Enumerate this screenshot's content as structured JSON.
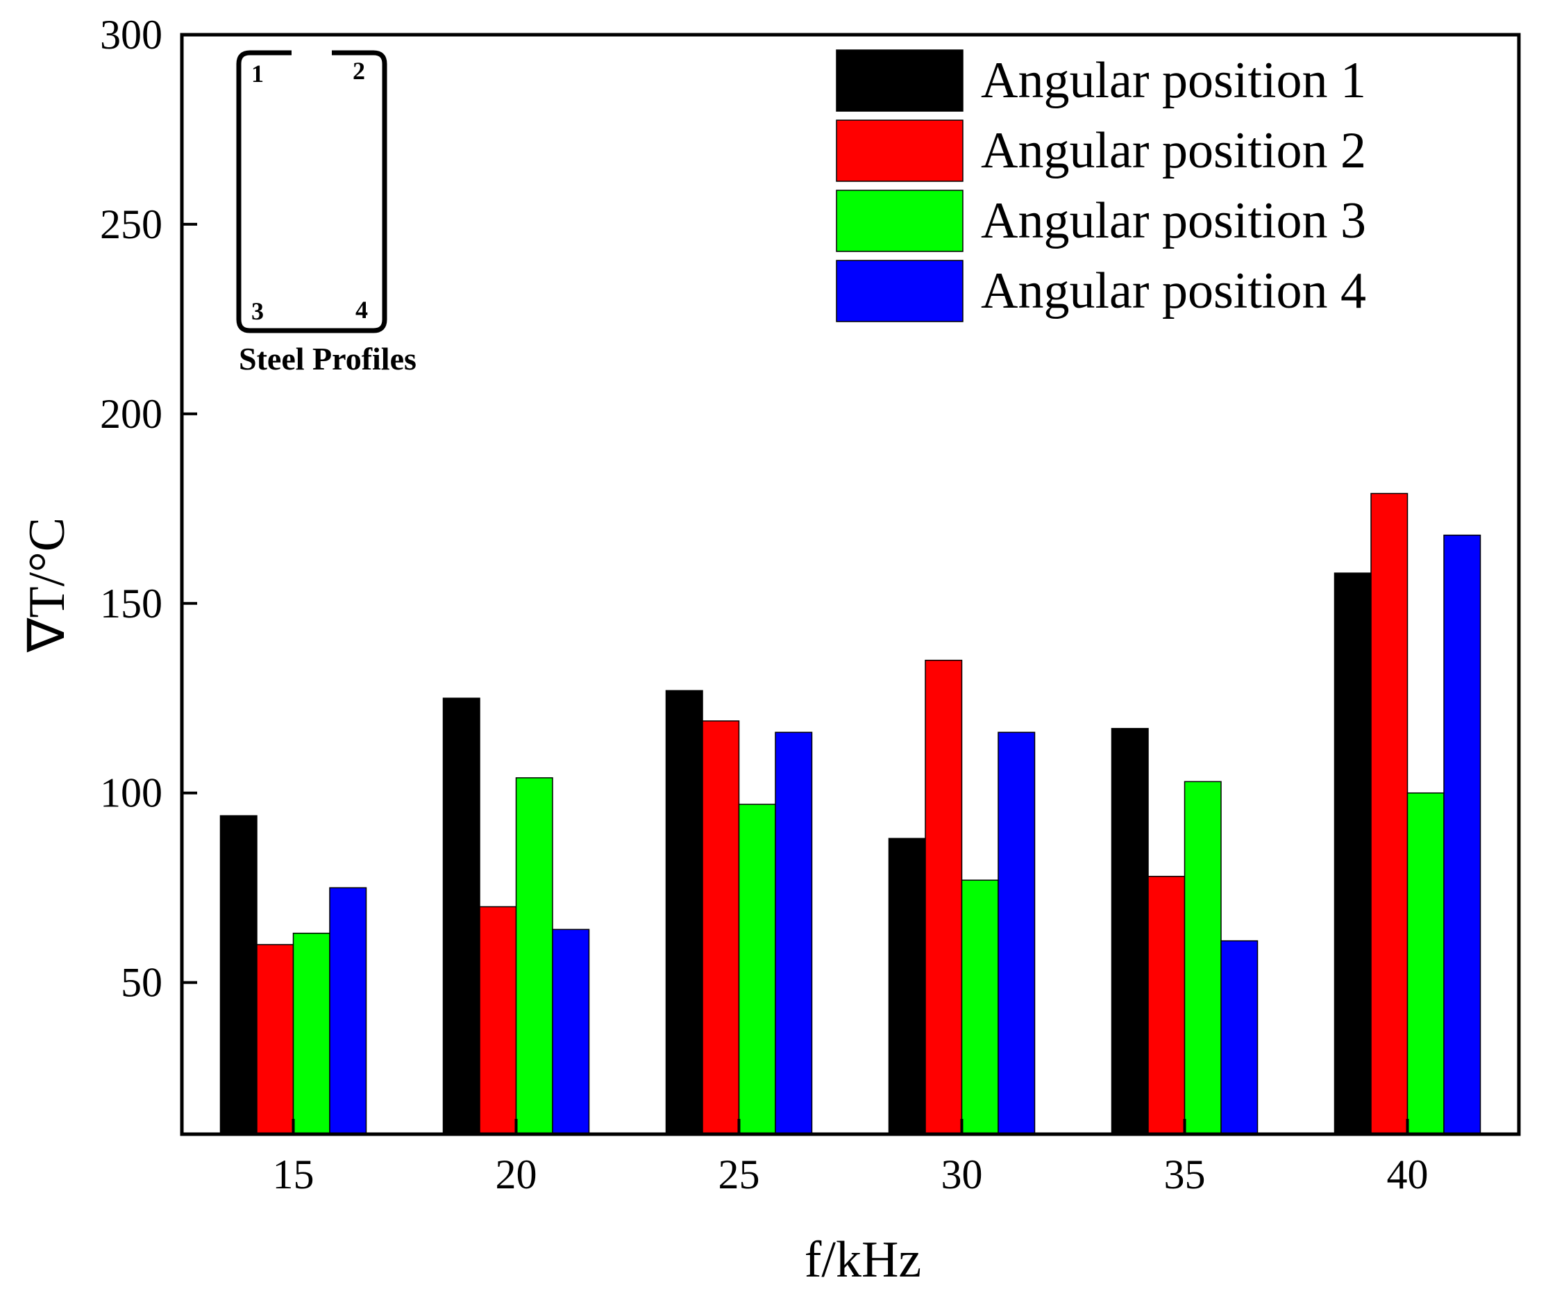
{
  "chart_data": {
    "type": "bar",
    "title": "",
    "xlabel": "f/kHz",
    "ylabel": "∇T/°C",
    "ylim": [
      10,
      300
    ],
    "yticks": [
      50,
      100,
      150,
      200,
      250,
      300
    ],
    "categories": [
      "15",
      "20",
      "25",
      "30",
      "35",
      "40"
    ],
    "series": [
      {
        "name": "Angular position 1",
        "color": "#000000",
        "values": [
          94,
          125,
          127,
          88,
          117,
          158
        ]
      },
      {
        "name": "Angular position 2",
        "color": "#ff0000",
        "values": [
          60,
          70,
          119,
          135,
          78,
          179
        ]
      },
      {
        "name": "Angular position 3",
        "color": "#00ff00",
        "values": [
          63,
          104,
          97,
          77,
          103,
          100
        ]
      },
      {
        "name": "Angular position 4",
        "color": "#0000ff",
        "values": [
          75,
          64,
          116,
          116,
          61,
          168
        ]
      }
    ],
    "legend_position": "top-right",
    "inset": {
      "title": "Steel Profiles",
      "corner_labels": [
        "1",
        "2",
        "3",
        "4"
      ]
    }
  }
}
